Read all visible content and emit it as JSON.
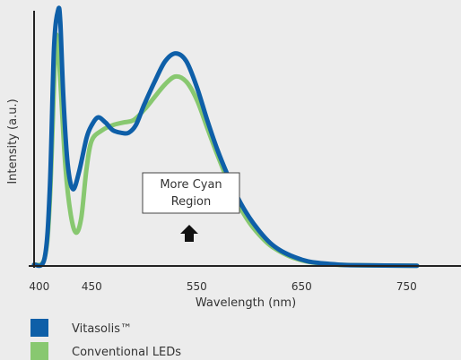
{
  "chart_data": {
    "type": "line",
    "title": "",
    "xlabel": "Wavelength (nm)",
    "ylabel": "Intensity (a.u.)",
    "xlim": [
      395,
      760
    ],
    "ylim": [
      0,
      1.0
    ],
    "x_ticks": [
      400,
      450,
      550,
      650,
      750
    ],
    "x_tick_labels": [
      "400",
      "450",
      "550",
      "650",
      "750"
    ],
    "grid": false,
    "legend_position": "bottom-left",
    "series": [
      {
        "name": "Conventional LEDs",
        "color": "#88c870",
        "points": [
          [
            395,
            0.005
          ],
          [
            405,
            0.03
          ],
          [
            410,
            0.25
          ],
          [
            415,
            0.82
          ],
          [
            417,
            0.89
          ],
          [
            420,
            0.72
          ],
          [
            425,
            0.38
          ],
          [
            430,
            0.2
          ],
          [
            435,
            0.13
          ],
          [
            440,
            0.19
          ],
          [
            445,
            0.38
          ],
          [
            450,
            0.49
          ],
          [
            460,
            0.53
          ],
          [
            470,
            0.55
          ],
          [
            480,
            0.56
          ],
          [
            490,
            0.57
          ],
          [
            500,
            0.61
          ],
          [
            510,
            0.66
          ],
          [
            520,
            0.71
          ],
          [
            530,
            0.74
          ],
          [
            540,
            0.72
          ],
          [
            550,
            0.65
          ],
          [
            560,
            0.54
          ],
          [
            570,
            0.43
          ],
          [
            580,
            0.33
          ],
          [
            590,
            0.24
          ],
          [
            600,
            0.17
          ],
          [
            610,
            0.12
          ],
          [
            620,
            0.08
          ],
          [
            630,
            0.055
          ],
          [
            640,
            0.035
          ],
          [
            650,
            0.022
          ],
          [
            660,
            0.014
          ],
          [
            680,
            0.006
          ],
          [
            700,
            0.003
          ],
          [
            760,
            0.001
          ]
        ]
      },
      {
        "name": "Vitasolis™",
        "color": "#0e5fa8",
        "points": [
          [
            395,
            0.005
          ],
          [
            405,
            0.03
          ],
          [
            410,
            0.3
          ],
          [
            414,
            0.85
          ],
          [
            418,
            1.0
          ],
          [
            420,
            0.95
          ],
          [
            423,
            0.65
          ],
          [
            427,
            0.4
          ],
          [
            432,
            0.3
          ],
          [
            438,
            0.37
          ],
          [
            445,
            0.5
          ],
          [
            450,
            0.55
          ],
          [
            456,
            0.58
          ],
          [
            463,
            0.56
          ],
          [
            470,
            0.53
          ],
          [
            478,
            0.52
          ],
          [
            485,
            0.52
          ],
          [
            492,
            0.55
          ],
          [
            500,
            0.63
          ],
          [
            510,
            0.72
          ],
          [
            520,
            0.8
          ],
          [
            530,
            0.83
          ],
          [
            540,
            0.8
          ],
          [
            550,
            0.7
          ],
          [
            560,
            0.57
          ],
          [
            570,
            0.45
          ],
          [
            580,
            0.35
          ],
          [
            590,
            0.26
          ],
          [
            600,
            0.19
          ],
          [
            610,
            0.135
          ],
          [
            620,
            0.09
          ],
          [
            630,
            0.06
          ],
          [
            640,
            0.04
          ],
          [
            650,
            0.025
          ],
          [
            660,
            0.015
          ],
          [
            680,
            0.007
          ],
          [
            700,
            0.003
          ],
          [
            760,
            0.001
          ]
        ]
      }
    ],
    "annotation": {
      "line1": "More Cyan",
      "line2": "Region",
      "arrow": "up-arrow-icon"
    }
  },
  "legend": [
    {
      "label": "Vitasolis™",
      "color": "#0e5fa8"
    },
    {
      "label": "Conventional LEDs",
      "color": "#88c870"
    }
  ]
}
